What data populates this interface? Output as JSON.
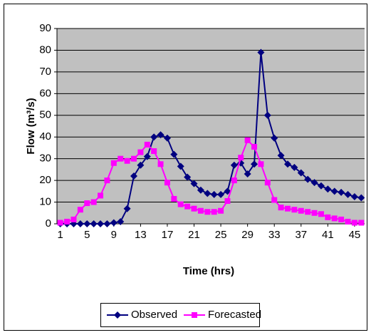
{
  "chart_data": {
    "type": "line",
    "x_label": "Time (hrs)",
    "y_label": "Flow (m³/s)",
    "x": [
      1,
      2,
      3,
      4,
      5,
      6,
      7,
      8,
      9,
      10,
      11,
      12,
      13,
      14,
      15,
      16,
      17,
      18,
      19,
      20,
      21,
      22,
      23,
      24,
      25,
      26,
      27,
      28,
      29,
      30,
      31,
      32,
      33,
      34,
      35,
      36,
      37,
      38,
      39,
      40,
      41,
      42,
      43,
      44,
      45,
      46
    ],
    "xlim": [
      0.5,
      46.5
    ],
    "xticks": [
      1,
      5,
      9,
      13,
      17,
      21,
      25,
      29,
      33,
      37,
      41,
      45
    ],
    "ylim": [
      0,
      90
    ],
    "yticks": [
      0,
      10,
      20,
      30,
      40,
      50,
      60,
      70,
      80,
      90
    ],
    "grid": true,
    "series": [
      {
        "name": "Observed",
        "color": "#000080",
        "marker": "diamond",
        "values": [
          0,
          0,
          0,
          0,
          0,
          0,
          0,
          0,
          0.5,
          1,
          7,
          22,
          27,
          31,
          40,
          41,
          39.5,
          32,
          26.5,
          21.5,
          18.5,
          15.5,
          14,
          13.5,
          13.5,
          15,
          27,
          28,
          23,
          27.5,
          79,
          50,
          39.5,
          31.5,
          27.5,
          26,
          23.5,
          20.5,
          19,
          17.5,
          16,
          15,
          14.5,
          13.5,
          12.5,
          12
        ]
      },
      {
        "name": "Forecasted",
        "color": "#ff00ff",
        "marker": "square",
        "values": [
          0.5,
          1,
          2,
          6.5,
          9.5,
          10,
          13,
          20,
          28,
          30,
          29,
          30,
          33,
          36.5,
          33.5,
          27.5,
          19,
          11.5,
          9,
          8,
          7,
          6,
          5.5,
          5.5,
          6,
          10.5,
          20,
          30.5,
          38.5,
          35.5,
          27.5,
          19,
          11,
          7.5,
          7,
          6.5,
          6,
          5.5,
          5,
          4.5,
          3,
          2.5,
          2,
          1,
          0.5,
          0.5
        ]
      }
    ]
  }
}
